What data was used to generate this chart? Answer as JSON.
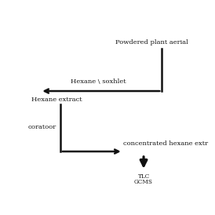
{
  "bg_color": "#ffffff",
  "text_color": "#1a1a1a",
  "arrow_color": "#111111",
  "label_powdered": "Powdered plant aerial",
  "label_hexane_soxhlet": "Hexane \\ soxhlet",
  "label_hexane_extract": "Hexane extract",
  "label_evaporator": "ooratoor",
  "label_concentrated": "concentrated hexane extr",
  "label_tlc": "TLC",
  "label_gcms": "GCMS",
  "font_size_main": 6.0,
  "font_size_small": 5.2,
  "lw": 1.8
}
